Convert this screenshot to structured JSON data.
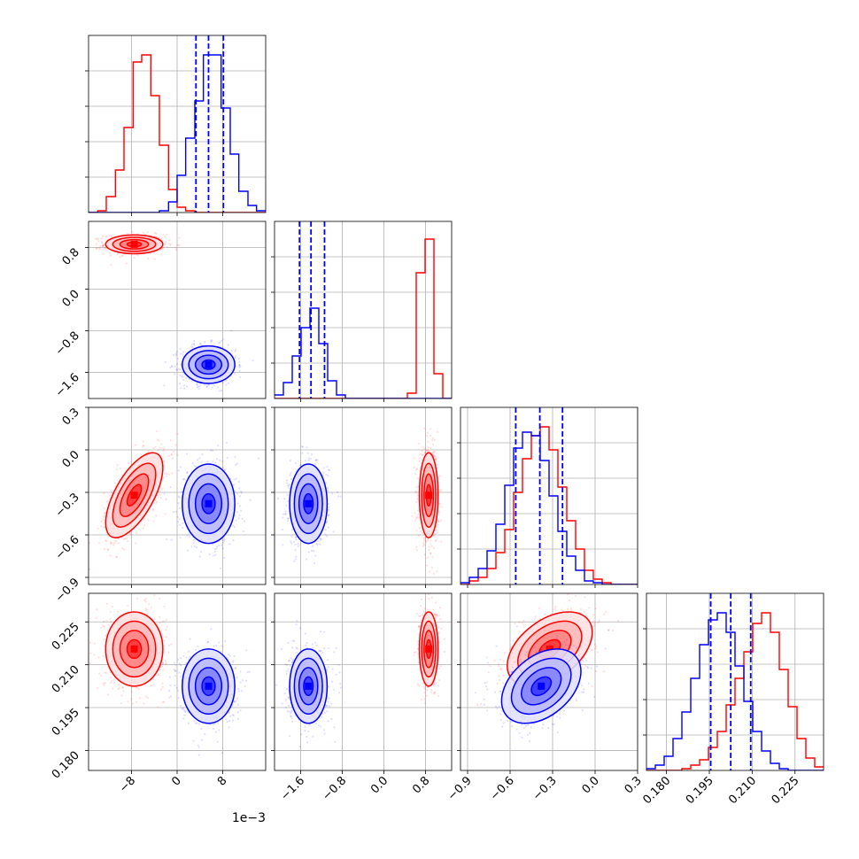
{
  "chart_data": {
    "type": "corner",
    "title": "",
    "parameters": [
      "",
      "",
      "",
      ""
    ],
    "axis_ranges": [
      [
        -0.0155,
        0.0155
      ],
      [
        -2.1,
        1.3
      ],
      [
        -0.95,
        0.3
      ],
      [
        0.173,
        0.235
      ]
    ],
    "ticks": [
      {
        "values": [
          -0.008,
          0.0,
          0.008
        ],
        "labels": [
          "−8",
          "0",
          "8"
        ],
        "offset_text": "1e−3"
      },
      {
        "values": [
          -1.6,
          -0.8,
          0.0,
          0.8
        ],
        "labels": [
          "−1.6",
          "−0.8",
          "0.0",
          "0.8"
        ]
      },
      {
        "values": [
          -0.9,
          -0.6,
          -0.3,
          0.0,
          0.3
        ],
        "labels": [
          "−0.9",
          "−0.6",
          "−0.3",
          "0.0",
          "0.3"
        ]
      },
      {
        "values": [
          0.18,
          0.195,
          0.21,
          0.225
        ],
        "labels": [
          "0.180",
          "0.195",
          "0.210",
          "0.225"
        ]
      }
    ],
    "series": [
      {
        "color": "#ff0000",
        "means": [
          -0.0075,
          0.86,
          -0.32,
          0.2155
        ],
        "sigmas": [
          0.0025,
          0.09,
          0.15,
          0.0065
        ],
        "correlations": [
          [
            0,
            1,
            0.0
          ],
          [
            0,
            2,
            0.65
          ],
          [
            0,
            3,
            0.0
          ],
          [
            1,
            2,
            0.0
          ],
          [
            1,
            3,
            0.0
          ],
          [
            2,
            3,
            0.45
          ]
        ]
      },
      {
        "color": "#0000ff",
        "means": [
          0.0055,
          -1.45,
          -0.38,
          0.2025
        ],
        "sigmas": [
          0.0023,
          0.18,
          0.14,
          0.0065
        ],
        "correlations": [
          [
            0,
            1,
            0.0
          ],
          [
            0,
            2,
            0.0
          ],
          [
            0,
            3,
            0.0
          ],
          [
            1,
            2,
            0.0
          ],
          [
            1,
            3,
            0.0
          ],
          [
            2,
            3,
            0.4
          ]
        ]
      }
    ],
    "histograms": [
      {
        "bin_edges": [
          -0.0155,
          -0.0139,
          -0.0124,
          -0.0108,
          -0.0093,
          -0.0077,
          -0.0062,
          -0.0046,
          -0.0031,
          -0.0015,
          0.0,
          0.0015,
          0.0031,
          0.0046,
          0.0062,
          0.0077,
          0.0093,
          0.0108,
          0.0124,
          0.0139,
          0.0155
        ],
        "counts": {
          "red": [
            0,
            0.01,
            0.09,
            0.24,
            0.48,
            0.85,
            0.89,
            0.66,
            0.38,
            0.13,
            0.03,
            0.01,
            0.0,
            0,
            0,
            0,
            0,
            0,
            0,
            0
          ],
          "blue": [
            0,
            0,
            0,
            0,
            0,
            0,
            0,
            0,
            0.01,
            0.06,
            0.21,
            0.42,
            0.63,
            0.89,
            0.89,
            0.59,
            0.33,
            0.12,
            0.04,
            0.01
          ]
        },
        "quantile_lines": [
          0.0033,
          0.0055,
          0.0081
        ]
      },
      {
        "bin_edges": [
          -2.1,
          -1.93,
          -1.76,
          -1.59,
          -1.42,
          -1.25,
          -1.08,
          -0.91,
          -0.74,
          -0.57,
          -0.4,
          -0.23,
          -0.06,
          0.11,
          0.28,
          0.45,
          0.62,
          0.79,
          0.96,
          1.13,
          1.3
        ],
        "counts": {
          "red": [
            0,
            0,
            0,
            0,
            0,
            0,
            0,
            0,
            0,
            0,
            0,
            0,
            0,
            0,
            0,
            0.03,
            0.71,
            0.9,
            0.14,
            0.0
          ],
          "blue": [
            0.02,
            0.09,
            0.24,
            0.4,
            0.51,
            0.31,
            0.1,
            0.02,
            0.0,
            0,
            0,
            0,
            0,
            0,
            0,
            0,
            0,
            0,
            0,
            0
          ]
        },
        "quantile_lines": [
          -1.62,
          -1.4,
          -1.14
        ]
      },
      {
        "bin_edges": [
          -0.95,
          -0.8875,
          -0.825,
          -0.7625,
          -0.7,
          -0.6375,
          -0.575,
          -0.5125,
          -0.45,
          -0.3875,
          -0.325,
          -0.2625,
          -0.2,
          -0.1375,
          -0.075,
          -0.0125,
          0.05,
          0.1125,
          0.175,
          0.2375,
          0.3
        ],
        "counts": {
          "red": [
            0.0,
            0.02,
            0.04,
            0.09,
            0.18,
            0.31,
            0.52,
            0.71,
            0.84,
            0.89,
            0.76,
            0.55,
            0.36,
            0.2,
            0.08,
            0.03,
            0.01,
            0.0,
            0,
            0
          ],
          "blue": [
            0.01,
            0.04,
            0.09,
            0.19,
            0.34,
            0.56,
            0.77,
            0.86,
            0.84,
            0.7,
            0.5,
            0.3,
            0.16,
            0.08,
            0.02,
            0.01,
            0.0,
            0,
            0,
            0
          ]
        },
        "quantile_lines": [
          -0.56,
          -0.39,
          -0.23
        ]
      },
      {
        "bin_edges": [
          0.173,
          0.1761,
          0.1792,
          0.1823,
          0.1854,
          0.1885,
          0.1916,
          0.1947,
          0.1978,
          0.2009,
          0.204,
          0.2071,
          0.2102,
          0.2133,
          0.2164,
          0.2195,
          0.2226,
          0.2257,
          0.2288,
          0.2319,
          0.235
        ],
        "counts": {
          "red": [
            0,
            0,
            0,
            0.0,
            0.01,
            0.03,
            0.06,
            0.13,
            0.22,
            0.37,
            0.52,
            0.67,
            0.83,
            0.89,
            0.78,
            0.57,
            0.36,
            0.18,
            0.07,
            0.02
          ],
          "blue": [
            0.01,
            0.03,
            0.08,
            0.18,
            0.33,
            0.52,
            0.71,
            0.85,
            0.89,
            0.78,
            0.59,
            0.39,
            0.22,
            0.11,
            0.04,
            0.01,
            0.0,
            0,
            0,
            0
          ]
        },
        "quantile_lines": [
          0.1955,
          0.2025,
          0.2095
        ]
      }
    ],
    "quantile_line_color": "#0000ff",
    "grid": true,
    "legend": "none"
  }
}
